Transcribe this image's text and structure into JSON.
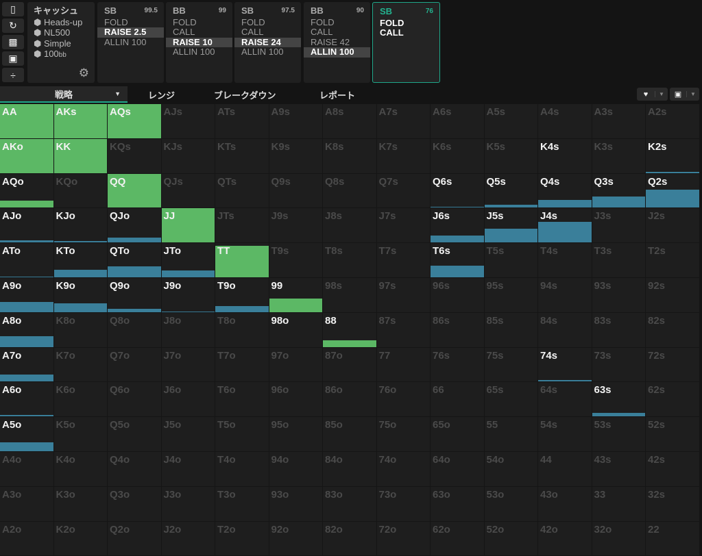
{
  "toolbar": {
    "icons": [
      "bookmark-icon",
      "refresh-icon",
      "save-icon",
      "gamepad-icon",
      "divide-icon"
    ]
  },
  "info": {
    "title": "キャッシュ",
    "items": [
      "Heads-up",
      "NL500",
      "Simple",
      "100"
    ],
    "unit": "bb"
  },
  "cards": [
    {
      "pos": "SB",
      "stack": "99.5",
      "actions": [
        "FOLD",
        "RAISE 2.5",
        "ALLIN 100"
      ],
      "selected": 1
    },
    {
      "pos": "BB",
      "stack": "99",
      "actions": [
        "FOLD",
        "CALL",
        "RAISE 10",
        "ALLIN 100"
      ],
      "selected": 2
    },
    {
      "pos": "SB",
      "stack": "97.5",
      "actions": [
        "FOLD",
        "CALL",
        "RAISE 24",
        "ALLIN 100"
      ],
      "selected": 2
    },
    {
      "pos": "BB",
      "stack": "90",
      "actions": [
        "FOLD",
        "CALL",
        "RAISE 42",
        "ALLIN 100"
      ],
      "selected": 3
    },
    {
      "pos": "SB",
      "stack": "76",
      "actions": [
        "FOLD",
        "CALL"
      ],
      "selected": -1,
      "current": true
    }
  ],
  "tabs": [
    "戦略",
    "レンジ",
    "ブレークダウン",
    "レポート"
  ],
  "colors": {
    "call": "#5cb865",
    "allin": "#3a7f9a",
    "accent": "#1fa88a"
  },
  "grid": {
    "rows": [
      [
        "AA",
        "AKs",
        "AQs",
        "AJs",
        "ATs",
        "A9s",
        "A8s",
        "A7s",
        "A6s",
        "A5s",
        "A4s",
        "A3s",
        "A2s"
      ],
      [
        "AKo",
        "KK",
        "KQs",
        "KJs",
        "KTs",
        "K9s",
        "K8s",
        "K7s",
        "K6s",
        "K5s",
        "K4s",
        "K3s",
        "K2s"
      ],
      [
        "AQo",
        "KQo",
        "QQ",
        "QJs",
        "QTs",
        "Q9s",
        "Q8s",
        "Q7s",
        "Q6s",
        "Q5s",
        "Q4s",
        "Q3s",
        "Q2s"
      ],
      [
        "AJo",
        "KJo",
        "QJo",
        "JJ",
        "JTs",
        "J9s",
        "J8s",
        "J7s",
        "J6s",
        "J5s",
        "J4s",
        "J3s",
        "J2s"
      ],
      [
        "ATo",
        "KTo",
        "QTo",
        "JTo",
        "TT",
        "T9s",
        "T8s",
        "T7s",
        "T6s",
        "T5s",
        "T4s",
        "T3s",
        "T2s"
      ],
      [
        "A9o",
        "K9o",
        "Q9o",
        "J9o",
        "T9o",
        "99",
        "98s",
        "97s",
        "96s",
        "95s",
        "94s",
        "93s",
        "92s"
      ],
      [
        "A8o",
        "K8o",
        "Q8o",
        "J8o",
        "T8o",
        "98o",
        "88",
        "87s",
        "86s",
        "85s",
        "84s",
        "83s",
        "82s"
      ],
      [
        "A7o",
        "K7o",
        "Q7o",
        "J7o",
        "T7o",
        "97o",
        "87o",
        "77",
        "76s",
        "75s",
        "74s",
        "73s",
        "72s"
      ],
      [
        "A6o",
        "K6o",
        "Q6o",
        "J6o",
        "T6o",
        "96o",
        "86o",
        "76o",
        "66",
        "65s",
        "64s",
        "63s",
        "62s"
      ],
      [
        "A5o",
        "K5o",
        "Q5o",
        "J5o",
        "T5o",
        "95o",
        "85o",
        "75o",
        "65o",
        "55",
        "54s",
        "53s",
        "52s"
      ],
      [
        "A4o",
        "K4o",
        "Q4o",
        "J4o",
        "T4o",
        "94o",
        "84o",
        "74o",
        "64o",
        "54o",
        "44",
        "43s",
        "42s"
      ],
      [
        "A3o",
        "K3o",
        "Q3o",
        "J3o",
        "T3o",
        "93o",
        "83o",
        "73o",
        "63o",
        "53o",
        "43o",
        "33",
        "32s"
      ],
      [
        "A2o",
        "K2o",
        "Q2o",
        "J2o",
        "T2o",
        "92o",
        "82o",
        "72o",
        "62o",
        "52o",
        "42o",
        "32o",
        "22"
      ]
    ],
    "active": [
      "AA",
      "AKs",
      "AQs",
      "AKo",
      "KK",
      "AQo",
      "QQ",
      "K4s",
      "K2s",
      "Q6s",
      "Q5s",
      "Q4s",
      "Q3s",
      "Q2s",
      "AJo",
      "KJo",
      "QJo",
      "JJ",
      "J6s",
      "J5s",
      "J4s",
      "ATo",
      "KTo",
      "QTo",
      "JTo",
      "TT",
      "T6s",
      "A9o",
      "K9o",
      "Q9o",
      "J9o",
      "T9o",
      "99",
      "A8o",
      "98o",
      "88",
      "A7o",
      "74s",
      "A6o",
      "63s",
      "A5o"
    ],
    "fills": {
      "AA": [
        "call",
        1
      ],
      "AKs": [
        "call",
        1
      ],
      "AQs": [
        "call",
        1
      ],
      "AKo": [
        "call",
        1
      ],
      "KK": [
        "call",
        1
      ],
      "AQo": [
        "call",
        0.2
      ],
      "QQ": [
        "call",
        1
      ],
      "JJ": [
        "call",
        1
      ],
      "TT": [
        "call",
        0.92
      ],
      "99": [
        "call",
        0.4
      ],
      "88": [
        "call",
        0.2
      ],
      "K2s": [
        "allin",
        0.03
      ],
      "Q6s": [
        "allin",
        0.03
      ],
      "Q5s": [
        "allin",
        0.08
      ],
      "Q4s": [
        "allin",
        0.22
      ],
      "Q3s": [
        "allin",
        0.33
      ],
      "Q2s": [
        "allin",
        0.53
      ],
      "AJo": [
        "allin",
        0.06
      ],
      "KJo": [
        "allin",
        0.04
      ],
      "QJo": [
        "allin",
        0.15
      ],
      "J6s": [
        "allin",
        0.2
      ],
      "J5s": [
        "allin",
        0.4
      ],
      "J4s": [
        "allin",
        0.6
      ],
      "ATo": [
        "allin",
        0.02
      ],
      "KTo": [
        "allin",
        0.22
      ],
      "QTo": [
        "allin",
        0.32
      ],
      "JTo": [
        "allin",
        0.2
      ],
      "T6s": [
        "allin",
        0.35
      ],
      "A9o": [
        "allin",
        0.3
      ],
      "K9o": [
        "allin",
        0.26
      ],
      "Q9o": [
        "allin",
        0.09
      ],
      "J9o": [
        "allin",
        0.01
      ],
      "T9o": [
        "allin",
        0.18
      ],
      "A8o": [
        "allin",
        0.32
      ],
      "A7o": [
        "allin",
        0.2
      ],
      "74s": [
        "allin",
        0.05
      ],
      "A6o": [
        "allin",
        0.04
      ],
      "63s": [
        "allin",
        0.11
      ],
      "A5o": [
        "allin",
        0.26
      ]
    }
  }
}
